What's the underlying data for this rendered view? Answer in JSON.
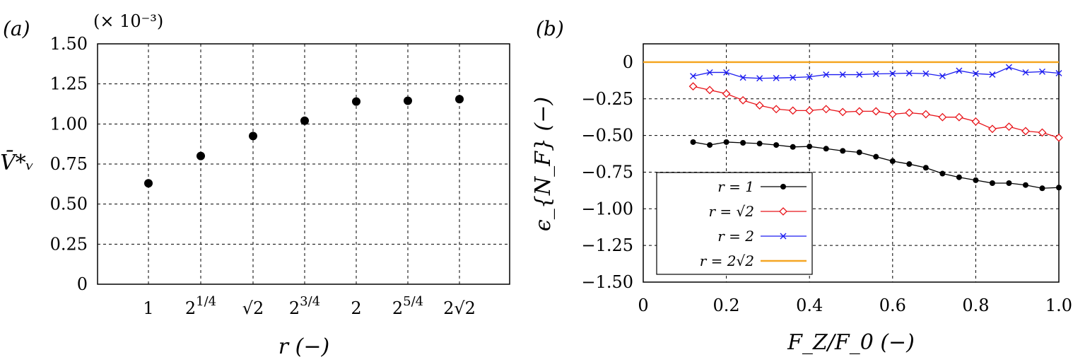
{
  "chart_data": [
    {
      "type": "scatter",
      "panel_label": "(a)",
      "scale_note": "(× 10⁻³)",
      "xlabel": "r (−)",
      "ylabel": "V̄*ᵥ",
      "categories": [
        "1",
        "2^{1/4}",
        "√2",
        "2^{3/4}",
        "2",
        "2^{5/4}",
        "2√2"
      ],
      "values": [
        0.63,
        0.8,
        0.925,
        1.02,
        1.14,
        1.145,
        1.155
      ],
      "ylim": [
        0,
        1.5
      ],
      "yticks": [
        "0",
        "0.25",
        "0.50",
        "0.75",
        "1.00",
        "1.25",
        "1.50"
      ],
      "grid": true
    },
    {
      "type": "line",
      "panel_label": "(b)",
      "xlabel": "F_Z/F_0 (−)",
      "ylabel": "ϵ_{N_F} (−)",
      "xlim": [
        0,
        1.0
      ],
      "ylim": [
        -1.5,
        0.125
      ],
      "xticks": [
        "0",
        "0.2",
        "0.4",
        "0.6",
        "0.8",
        "1.0"
      ],
      "yticks": [
        "0",
        "-0.25",
        "-0.50",
        "-0.75",
        "-1.00",
        "-1.25",
        "-1.50"
      ],
      "grid": true,
      "legend_position": "bottom-left",
      "x": [
        0.12,
        0.16,
        0.2,
        0.24,
        0.28,
        0.32,
        0.36,
        0.4,
        0.44,
        0.48,
        0.52,
        0.56,
        0.6,
        0.64,
        0.68,
        0.72,
        0.76,
        0.8,
        0.84,
        0.88,
        0.92,
        0.96,
        1.0
      ],
      "series": [
        {
          "name": "r = 1",
          "color": "#000000",
          "marker": "dot",
          "values": [
            -0.545,
            -0.565,
            -0.545,
            -0.55,
            -0.555,
            -0.565,
            -0.578,
            -0.575,
            -0.59,
            -0.605,
            -0.615,
            -0.645,
            -0.675,
            -0.695,
            -0.72,
            -0.76,
            -0.785,
            -0.805,
            -0.825,
            -0.825,
            -0.838,
            -0.86,
            -0.855
          ]
        },
        {
          "name": "r = √2",
          "color": "#e8151b",
          "marker": "diamond",
          "values": [
            -0.165,
            -0.19,
            -0.215,
            -0.26,
            -0.295,
            -0.32,
            -0.33,
            -0.33,
            -0.32,
            -0.34,
            -0.335,
            -0.335,
            -0.355,
            -0.345,
            -0.355,
            -0.375,
            -0.375,
            -0.405,
            -0.455,
            -0.44,
            -0.47,
            -0.48,
            -0.515
          ]
        },
        {
          "name": "r = 2",
          "color": "#1c1cf0",
          "marker": "cross",
          "values": [
            -0.095,
            -0.07,
            -0.07,
            -0.105,
            -0.11,
            -0.108,
            -0.105,
            -0.1,
            -0.085,
            -0.085,
            -0.085,
            -0.08,
            -0.078,
            -0.075,
            -0.078,
            -0.095,
            -0.058,
            -0.078,
            -0.085,
            -0.035,
            -0.07,
            -0.065,
            -0.075
          ]
        },
        {
          "name": "r = 2√2",
          "color": "#f5a623",
          "marker": "none",
          "values": [
            0,
            0,
            0,
            0,
            0,
            0,
            0,
            0,
            0,
            0,
            0,
            0,
            0,
            0,
            0,
            0,
            0,
            0,
            0,
            0,
            0,
            0,
            0
          ]
        }
      ],
      "orange_full_x": [
        0,
        1.0
      ]
    }
  ]
}
